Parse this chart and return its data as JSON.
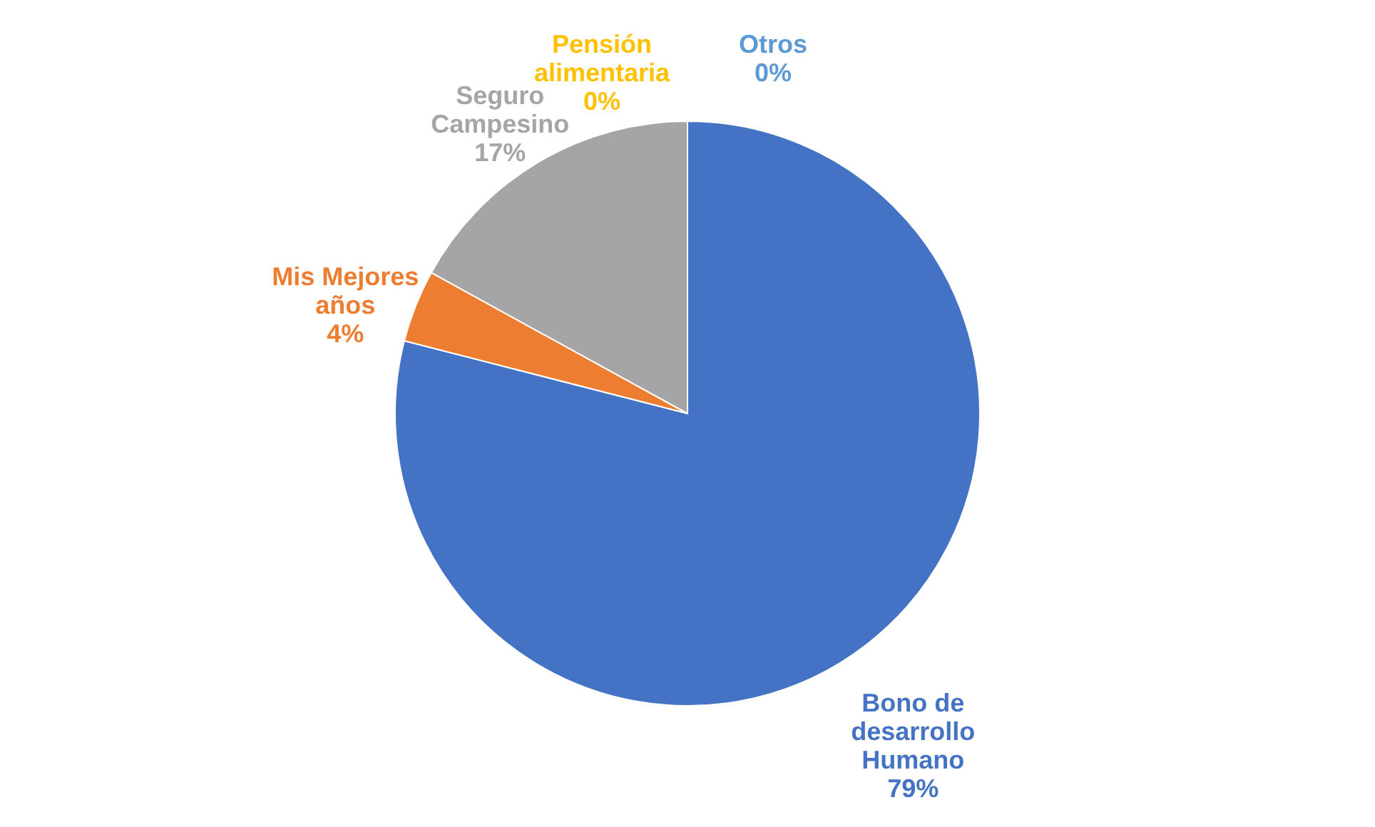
{
  "chart_data": {
    "type": "pie",
    "categories": [
      "Bono de desarrollo Humano",
      "Mis Mejores años",
      "Seguro Campesino",
      "Pensión alimentaria",
      "Otros"
    ],
    "values": [
      79,
      4,
      17,
      0,
      0
    ],
    "colors": [
      "#4472c4",
      "#ed7d31",
      "#a5a5a5",
      "#ffc000",
      "#5b9bd5"
    ],
    "value_labels": [
      "79%",
      "4%",
      "17%",
      "0%",
      "0%"
    ]
  }
}
